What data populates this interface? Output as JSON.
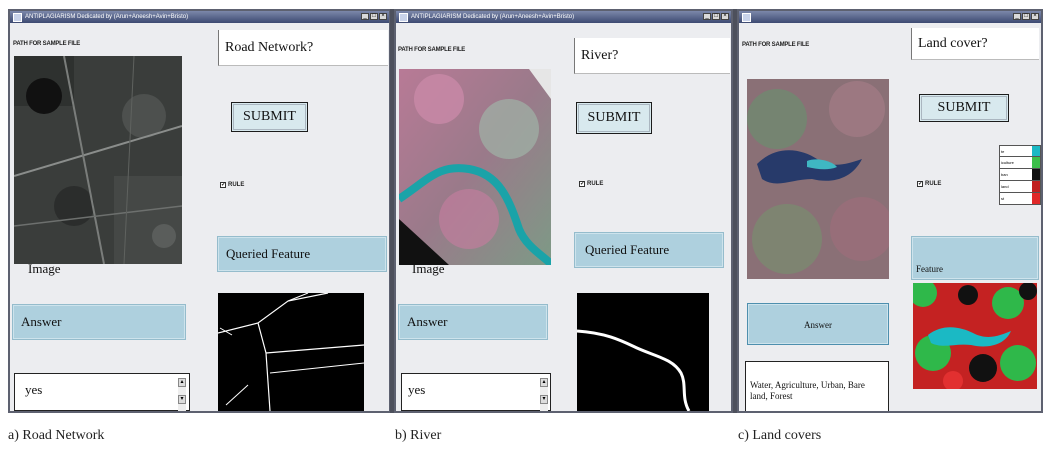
{
  "panels": [
    {
      "title": "ANTIPLAGIARISM Dedicated by (Arun+Aneesh+Avin+Bristo)",
      "path_label": "PATH FOR SAMPLE FILE",
      "question": "Road Network?",
      "submit_label": "SUBMIT",
      "rule_label": "RULE",
      "queried_label": "Queried Feature",
      "image_label": "Image",
      "answer_button_label": "Answer",
      "answer_text": "yes",
      "caption": "a) Road Network"
    },
    {
      "title": "ANTIPLAGIARISM Dedicated by (Arun+Aneesh+Avin+Bristo)",
      "path_label": "PATH FOR SAMPLE FILE",
      "question": "River?",
      "submit_label": "SUBMIT",
      "rule_label": "RULE",
      "queried_label": "Queried Feature",
      "image_label": "Image",
      "answer_button_label": "Answer",
      "answer_text": "yes",
      "caption": "b) River"
    },
    {
      "title": "",
      "path_label": "PATH FOR SAMPLE FILE",
      "question": "Land cover?",
      "submit_label": "SUBMIT",
      "rule_label": "RULE",
      "queried_label": "Feature",
      "answer_button_label": "Answer",
      "answer_text": "Water, Agriculture, Urban, Bare land, Forest",
      "caption": "c) Land covers",
      "legend": [
        {
          "label": "te",
          "color": "#1bb9c4"
        },
        {
          "label": "iculture",
          "color": "#3cbf4a"
        },
        {
          "label": "ban",
          "color": "#111111"
        },
        {
          "label": "land",
          "color": "#c02020"
        },
        {
          "label": "st",
          "color": "#e02828"
        }
      ]
    }
  ],
  "icons": {
    "window_controls": [
      "minimize-icon",
      "maximize-icon",
      "close-icon"
    ]
  }
}
